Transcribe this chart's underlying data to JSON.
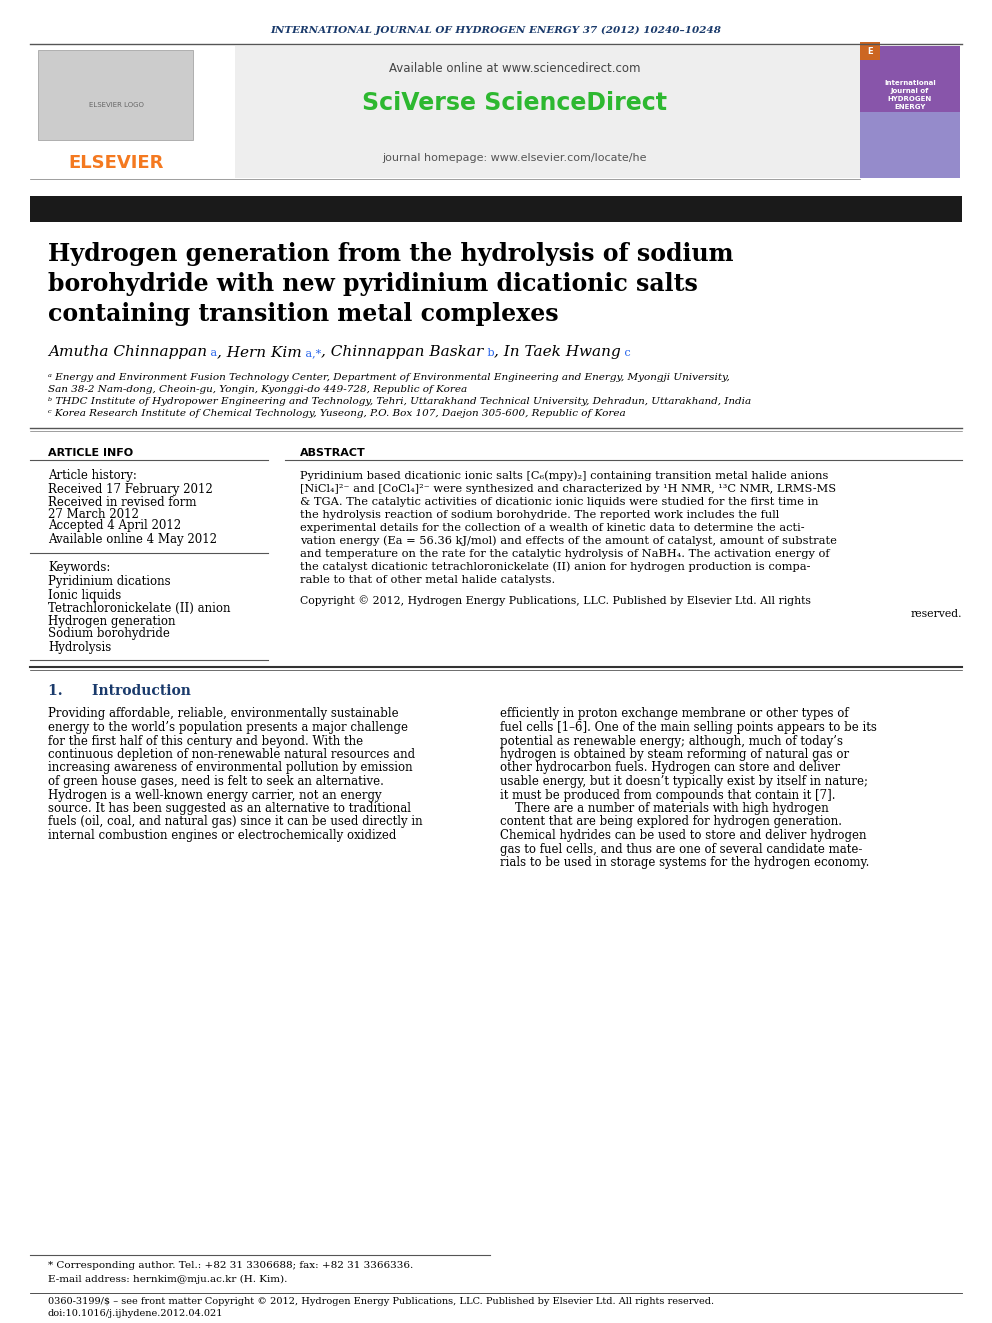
{
  "journal_header": "INTERNATIONAL JOURNAL OF HYDROGEN ENERGY 37 (2012) 10240–10248",
  "available_online": "Available online at www.sciencedirect.com",
  "sciverse_text": "SciVerse ScienceDirect",
  "journal_homepage": "journal homepage: www.elsevier.com/locate/he",
  "paper_title_line1": "Hydrogen generation from the hydrolysis of sodium",
  "paper_title_line2": "borohydride with new pyridinium dicationic salts",
  "paper_title_line3": "containing transition metal complexes",
  "affil_a": "ᵃ Energy and Environment Fusion Technology Center, Department of Environmental Engineering and Energy, Myongji University,",
  "affil_a2": "San 38-2 Nam-dong, Cheoin-gu, Yongin, Kyonggi-do 449-728, Republic of Korea",
  "affil_b": "ᵇ THDC Institute of Hydropower Engineering and Technology, Tehri, Uttarakhand Technical University, Dehradun, Uttarakhand, India",
  "affil_c": "ᶜ Korea Research Institute of Chemical Technology, Yuseong, P.O. Box 107, Daejon 305-600, Republic of Korea",
  "article_info_header": "ARTICLE INFO",
  "abstract_header": "ABSTRACT",
  "article_history_label": "Article history:",
  "received1": "Received 17 February 2012",
  "received_revised": "Received in revised form",
  "revised_date": "27 March 2012",
  "accepted": "Accepted 4 April 2012",
  "available_online2": "Available online 4 May 2012",
  "keywords_label": "Keywords:",
  "keyword1": "Pyridinium dications",
  "keyword2": "Ionic liquids",
  "keyword3": "Tetrachloronickelate (II) anion",
  "keyword4": "Hydrogen generation",
  "keyword5": "Sodium borohydride",
  "keyword6": "Hydrolysis",
  "copyright_line1": "Copyright © 2012, Hydrogen Energy Publications, LLC. Published by Elsevier Ltd. All rights",
  "copyright_line2": "reserved.",
  "intro_header": "1.      Introduction",
  "footnote_star": "* Corresponding author. Tel.: +82 31 3306688; fax: +82 31 3366336.",
  "footnote_email": "E-mail address: hernkim@mju.ac.kr (H. Kim).",
  "footnote_issn": "0360-3199/$ – see front matter Copyright © 2012, Hydrogen Energy Publications, LLC. Published by Elsevier Ltd. All rights reserved.",
  "footnote_doi": "doi:10.1016/j.ijhydene.2012.04.021",
  "bg_color": "#ffffff",
  "title_bar_color": "#1a1a1a",
  "journal_header_color": "#1a3a6b",
  "sciverse_color": "#2db830",
  "url_color": "#2563eb",
  "elsevier_color": "#f47920",
  "intro_header_color": "#1a3a6b"
}
